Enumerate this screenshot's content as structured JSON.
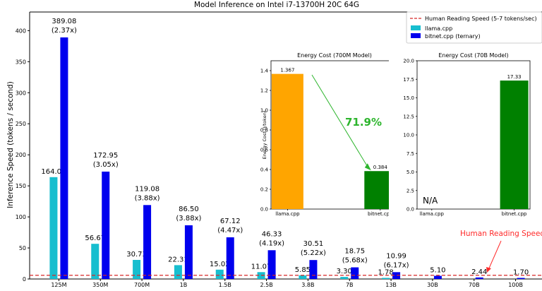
{
  "chart_data": [
    {
      "type": "bar",
      "title": "Model Inference on Intel i7-13700H 20C 64G",
      "xlabel": "",
      "ylabel": "Inference Speed (tokens / second)",
      "ylim": [
        0,
        430
      ],
      "yticks": [
        0,
        50,
        100,
        150,
        200,
        250,
        300,
        350,
        400
      ],
      "grid": false,
      "legend_position": "top-right",
      "categories": [
        "125M",
        "350M",
        "700M",
        "1B",
        "1.5B",
        "2.5B",
        "3.8B",
        "7B",
        "13B",
        "30B",
        "70B",
        "100B"
      ],
      "series": [
        {
          "name": "llama.cpp",
          "color": "#17becf",
          "values": [
            164.04,
            56.67,
            30.73,
            22.31,
            15.02,
            11.07,
            5.85,
            3.3,
            1.78,
            null,
            null,
            null
          ],
          "labels": [
            "164.04",
            "56.67",
            "30.73",
            "22.31",
            "15.02",
            "11.07",
            "5.85",
            "3.30",
            "1.78",
            "",
            "",
            ""
          ]
        },
        {
          "name": "bitnet.cpp (ternary)",
          "color": "#0000ee",
          "values": [
            389.08,
            172.95,
            119.08,
            86.5,
            67.12,
            46.33,
            30.51,
            18.75,
            10.99,
            5.1,
            2.44,
            1.7
          ],
          "labels": [
            "389.08",
            "172.95",
            "119.08",
            "86.50",
            "67.12",
            "46.33",
            "30.51",
            "18.75",
            "10.99",
            "5.10",
            "2.44",
            "1.70"
          ],
          "speedups": [
            "(2.37x)",
            "(3.05x)",
            "(3.88x)",
            "(3.88x)",
            "(4.47x)",
            "(4.19x)",
            "(5.22x)",
            "(5.68x)",
            "(6.17x)",
            "",
            "",
            ""
          ]
        }
      ],
      "reference_line": {
        "name": "Human Reading Speed (5-7 tokens/sec)",
        "value": 6,
        "color": "#d62728"
      },
      "annotation": {
        "text": "Human Reading Speed",
        "color": "#ff2a2a"
      }
    },
    {
      "type": "bar",
      "title": "Energy Cost (700M Model)",
      "ylabel": "Energy Cost (J/token)",
      "ylim": [
        0,
        1.5
      ],
      "yticks": [
        0.0,
        0.2,
        0.4,
        0.6,
        0.8,
        1.0,
        1.2,
        1.4
      ],
      "ytick_labels": [
        "0.0",
        "0.2",
        "0.4",
        "0.6",
        "0.8",
        "1.0",
        "1.2",
        "1.4"
      ],
      "categories": [
        "llama.cpp",
        "bitnet.cpp"
      ],
      "values": [
        1.367,
        0.384
      ],
      "labels": [
        "1.367",
        "0.384"
      ],
      "colors": [
        "#ffa500",
        "#008000"
      ],
      "reduction_label": "71.9%",
      "reduction_color": "#2db52d"
    },
    {
      "type": "bar",
      "title": "Energy Cost (70B Model)",
      "ylim": [
        0,
        20
      ],
      "yticks": [
        0.0,
        2.5,
        5.0,
        7.5,
        10.0,
        12.5,
        15.0,
        17.5,
        20.0
      ],
      "ytick_labels": [
        "0.0",
        "2.5",
        "5.0",
        "7.5",
        "10.0",
        "12.5",
        "15.0",
        "17.5",
        "20.0"
      ],
      "categories": [
        "llama.cpp",
        "bitnet.cpp"
      ],
      "values": [
        null,
        17.33
      ],
      "labels": [
        "",
        "17.33"
      ],
      "colors": [
        "#ffa500",
        "#008000"
      ],
      "na_label": "N/A"
    }
  ]
}
